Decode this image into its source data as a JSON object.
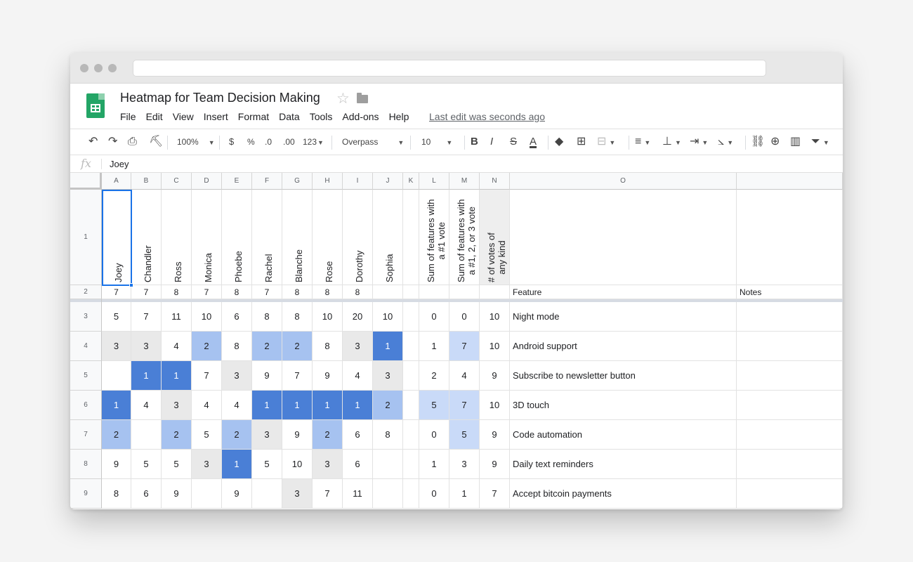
{
  "window": {
    "url": ""
  },
  "doc": {
    "title": "Heatmap for Team Decision Making",
    "last_edit": "Last edit was seconds ago"
  },
  "menu": [
    "File",
    "Edit",
    "View",
    "Insert",
    "Format",
    "Data",
    "Tools",
    "Add-ons",
    "Help"
  ],
  "toolbar": {
    "zoom": "100%",
    "currency": "$",
    "percent": "%",
    "decrease_decimals": ".0",
    "increase_decimals": ".00",
    "more_formats": "123",
    "font": "Overpass",
    "font_size": "10",
    "bold": "B",
    "italic": "I",
    "strikethrough": "S",
    "text_color": "A",
    "icons": [
      "undo-icon",
      "redo-icon",
      "print-icon",
      "paint-format-icon",
      "fill-color-icon",
      "borders-icon",
      "merge-cells-icon",
      "horizontal-align-icon",
      "vertical-align-icon",
      "text-wrapping-icon",
      "text-rotation-icon",
      "link-icon",
      "comment-icon",
      "chart-icon",
      "filter-icon"
    ]
  },
  "formula_bar": {
    "label": "fx",
    "value": "Joey"
  },
  "columns": [
    "A",
    "B",
    "C",
    "D",
    "E",
    "F",
    "G",
    "H",
    "I",
    "J",
    "K",
    "L",
    "M",
    "N",
    "O"
  ],
  "rows": [
    "1",
    "2",
    "3",
    "4",
    "5",
    "6",
    "7",
    "8",
    "9"
  ],
  "header_row": {
    "names": [
      "Joey",
      "Chandler",
      "Ross",
      "Monica",
      "Phoebe",
      "Rachel",
      "Blanche",
      "Rose",
      "Dorothy",
      "Sophia"
    ],
    "sum_first": [
      "Sum of features with",
      "a #1 vote"
    ],
    "sum_top3": [
      "Sum of features with",
      "a #1, 2, or 3 vote"
    ],
    "vote_count": [
      "# of votes of",
      "any kind"
    ]
  },
  "row2": {
    "counts": [
      "7",
      "7",
      "8",
      "7",
      "8",
      "7",
      "8",
      "8",
      "8"
    ],
    "feature_label": "Feature",
    "notes_label": "Notes"
  },
  "data_rows": [
    {
      "votes": [
        "5",
        "7",
        "11",
        "10",
        "6",
        "8",
        "8",
        "10",
        "20",
        "10"
      ],
      "l": "0",
      "m": "0",
      "n": "10",
      "feature": "Night mode"
    },
    {
      "votes": [
        "3",
        "3",
        "4",
        "2",
        "8",
        "2",
        "2",
        "8",
        "3",
        "1"
      ],
      "l": "1",
      "m": "7",
      "n": "10",
      "feature": "Android support"
    },
    {
      "votes": [
        "",
        "1",
        "1",
        "7",
        "3",
        "9",
        "7",
        "9",
        "4",
        "3"
      ],
      "l": "2",
      "m": "4",
      "n": "9",
      "feature": "Subscribe to newsletter button"
    },
    {
      "votes": [
        "1",
        "4",
        "3",
        "4",
        "4",
        "1",
        "1",
        "1",
        "1",
        "2"
      ],
      "l": "5",
      "m": "7",
      "n": "10",
      "feature": "3D touch"
    },
    {
      "votes": [
        "2",
        "",
        "2",
        "5",
        "2",
        "3",
        "9",
        "2",
        "6",
        "8"
      ],
      "l": "0",
      "m": "5",
      "n": "9",
      "feature": "Code automation"
    },
    {
      "votes": [
        "9",
        "5",
        "5",
        "3",
        "1",
        "5",
        "10",
        "3",
        "6",
        ""
      ],
      "l": "1",
      "m": "3",
      "n": "9",
      "feature": "Daily text reminders"
    },
    {
      "votes": [
        "8",
        "6",
        "9",
        "",
        "9",
        "",
        "3",
        "7",
        "11",
        ""
      ],
      "l": "0",
      "m": "1",
      "n": "7",
      "feature": "Accept bitcoin payments"
    }
  ],
  "colors": {
    "rank1": "#4a7fd6",
    "rank2": "#a6c2f0",
    "rank3": "#e9e9e9",
    "sum_light": "#c9daf8",
    "selection": "#1a73e8",
    "sheets_green": "#23a566"
  }
}
